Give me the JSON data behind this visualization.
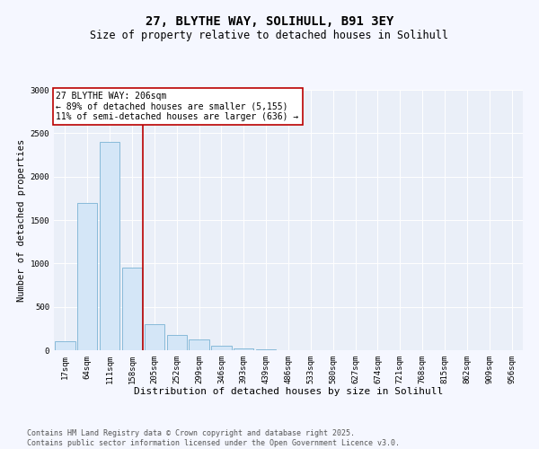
{
  "title": "27, BLYTHE WAY, SOLIHULL, B91 3EY",
  "subtitle": "Size of property relative to detached houses in Solihull",
  "xlabel": "Distribution of detached houses by size in Solihull",
  "ylabel": "Number of detached properties",
  "categories": [
    "17sqm",
    "64sqm",
    "111sqm",
    "158sqm",
    "205sqm",
    "252sqm",
    "299sqm",
    "346sqm",
    "393sqm",
    "439sqm",
    "486sqm",
    "533sqm",
    "580sqm",
    "627sqm",
    "674sqm",
    "721sqm",
    "768sqm",
    "815sqm",
    "862sqm",
    "909sqm",
    "956sqm"
  ],
  "values": [
    100,
    1700,
    2400,
    950,
    300,
    175,
    120,
    50,
    20,
    10,
    5,
    2,
    1,
    0,
    0,
    0,
    0,
    0,
    0,
    0,
    0
  ],
  "bar_color": "#d4e6f7",
  "bar_edge_color": "#7ab3d4",
  "vline_x": 3.5,
  "vline_color": "#bb0000",
  "annotation_text": "27 BLYTHE WAY: 206sqm\n← 89% of detached houses are smaller (5,155)\n11% of semi-detached houses are larger (636) →",
  "annotation_box_edgecolor": "#bb0000",
  "ylim": [
    0,
    3000
  ],
  "yticks": [
    0,
    500,
    1000,
    1500,
    2000,
    2500,
    3000
  ],
  "plot_bg": "#eaeff8",
  "grid_color": "#ffffff",
  "fig_bg": "#f5f7ff",
  "footer": "Contains HM Land Registry data © Crown copyright and database right 2025.\nContains public sector information licensed under the Open Government Licence v3.0.",
  "title_fontsize": 10,
  "subtitle_fontsize": 8.5,
  "annotation_fontsize": 7,
  "tick_fontsize": 6.5,
  "ylabel_fontsize": 7.5,
  "xlabel_fontsize": 8,
  "footer_fontsize": 6
}
